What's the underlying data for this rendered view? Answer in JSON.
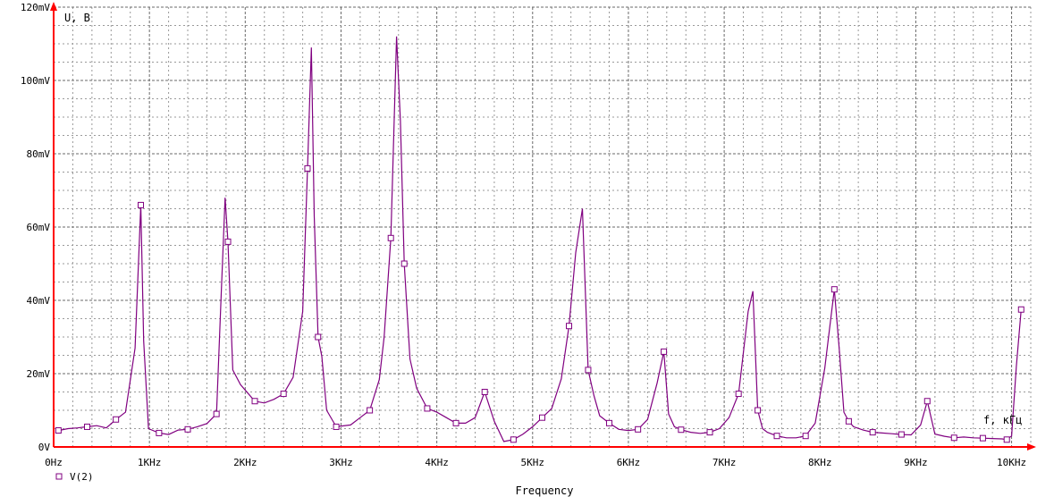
{
  "chart_data": {
    "type": "line",
    "xlabel": "Frequency",
    "ylabel_annotation": "U, B",
    "xlabel_annotation": "f, кГц",
    "x_unit": "Hz",
    "y_unit": "mV",
    "xlim": [
      0,
      10200
    ],
    "ylim": [
      0,
      120
    ],
    "x_ticks": [
      0,
      1000,
      2000,
      3000,
      4000,
      5000,
      6000,
      7000,
      8000,
      9000,
      10000
    ],
    "x_tick_labels": [
      "0Hz",
      "1KHz",
      "2KHz",
      "3KHz",
      "4KHz",
      "5KHz",
      "6KHz",
      "7KHz",
      "8KHz",
      "9KHz",
      "10KHz"
    ],
    "y_ticks": [
      0,
      20,
      40,
      60,
      80,
      100,
      120
    ],
    "y_tick_labels": [
      "0V",
      "20mV",
      "40mV",
      "60mV",
      "80mV",
      "100mV",
      "120mV"
    ],
    "grid": true,
    "legend_position": "bottom-left",
    "series": [
      {
        "name": "V(2)",
        "color": "#800080",
        "x": [
          50,
          150,
          250,
          350,
          450,
          550,
          650,
          750,
          850,
          910,
          940,
          990,
          1100,
          1200,
          1300,
          1400,
          1500,
          1600,
          1700,
          1750,
          1790,
          1820,
          1870,
          1950,
          2100,
          2200,
          2300,
          2400,
          2500,
          2600,
          2650,
          2690,
          2720,
          2760,
          2800,
          2850,
          2950,
          3100,
          3200,
          3300,
          3400,
          3450,
          3520,
          3580,
          3620,
          3660,
          3720,
          3790,
          3900,
          4000,
          4100,
          4200,
          4300,
          4400,
          4500,
          4600,
          4700,
          4800,
          4900,
          5000,
          5100,
          5200,
          5300,
          5380,
          5450,
          5520,
          5580,
          5640,
          5700,
          5800,
          5900,
          6000,
          6100,
          6200,
          6300,
          6370,
          6420,
          6480,
          6550,
          6650,
          6750,
          6850,
          6950,
          7050,
          7150,
          7250,
          7300,
          7350,
          7400,
          7450,
          7550,
          7650,
          7750,
          7850,
          7950,
          8050,
          8150,
          8200,
          8250,
          8300,
          8350,
          8450,
          8550,
          8650,
          8750,
          8850,
          8950,
          9050,
          9120,
          9200,
          9300,
          9400,
          9500,
          9600,
          9700,
          9800,
          9900,
          9950,
          10000,
          10050,
          10100
        ],
        "values": [
          4.5,
          5.0,
          5.2,
          5.5,
          5.8,
          5.2,
          7.5,
          9.5,
          27,
          66,
          29,
          5.0,
          3.8,
          3.4,
          4.6,
          4.8,
          5.5,
          6.4,
          9.0,
          42,
          68,
          56,
          21,
          17,
          12.5,
          12,
          13,
          14.5,
          19,
          37,
          76,
          109,
          63,
          30,
          24.7,
          10,
          5.5,
          6.0,
          8.0,
          10,
          18.4,
          30,
          57,
          112,
          89,
          50,
          24,
          16,
          10.5,
          9.5,
          8.0,
          6.5,
          6.5,
          8.0,
          15,
          7.0,
          1.5,
          2.0,
          3.5,
          5.5,
          8.0,
          10.5,
          18.6,
          33,
          53,
          65,
          21,
          14,
          8.5,
          6.5,
          4.8,
          4.5,
          4.8,
          7.5,
          17.5,
          26,
          9.0,
          5.5,
          4.7,
          4.0,
          3.7,
          4.0,
          5.0,
          8.0,
          14.5,
          37,
          42.5,
          10,
          5.0,
          4.0,
          3.0,
          2.5,
          2.5,
          3.0,
          6.5,
          21.5,
          43,
          27,
          9.5,
          7.0,
          5.5,
          4.6,
          4.0,
          3.8,
          3.6,
          3.4,
          3.3,
          6.0,
          12.5,
          3.5,
          2.9,
          2.5,
          2.7,
          2.5,
          2.4,
          2.3,
          2.2,
          2.0,
          3.0,
          22,
          37.5
        ]
      }
    ]
  }
}
